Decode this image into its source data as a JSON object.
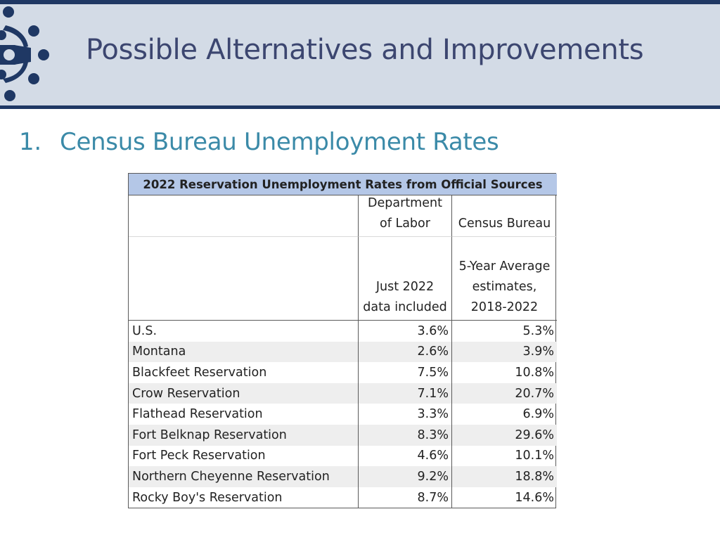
{
  "header": {
    "title": "Possible Alternatives and Improvements"
  },
  "section": {
    "number": "1.",
    "title": "Census Bureau Unemployment Rates"
  },
  "table": {
    "caption": "2022 Reservation Unemployment Rates from Official Sources",
    "col_dol": {
      "line1": "Department",
      "line2": "of Labor",
      "sub1": "Just 2022",
      "sub2": "data included"
    },
    "col_census": {
      "line1": "Census Bureau",
      "sub1": "5-Year Average",
      "sub2": "estimates,",
      "sub3": "2018-2022"
    },
    "rows": [
      {
        "label": "U.S.",
        "dol": "3.6%",
        "census": "5.3%"
      },
      {
        "label": "Montana",
        "dol": "2.6%",
        "census": "3.9%"
      },
      {
        "label": "Blackfeet Reservation",
        "dol": "7.5%",
        "census": "10.8%"
      },
      {
        "label": "Crow Reservation",
        "dol": "7.1%",
        "census": "20.7%"
      },
      {
        "label": "Flathead Reservation",
        "dol": "3.3%",
        "census": "6.9%"
      },
      {
        "label": "Fort Belknap Reservation",
        "dol": "8.3%",
        "census": "29.6%"
      },
      {
        "label": "Fort Peck Reservation",
        "dol": "4.6%",
        "census": "10.1%"
      },
      {
        "label": "Northern Cheyenne Reservation",
        "dol": "9.2%",
        "census": "18.8%"
      },
      {
        "label": "Rocky Boy's Reservation",
        "dol": "8.7%",
        "census": "14.6%"
      }
    ]
  },
  "colors": {
    "navy": "#1f3864",
    "header_band": "#d3dbe6",
    "title": "#3c4670",
    "section": "#3b8aa8",
    "caption_fill": "#b4c7e7"
  }
}
